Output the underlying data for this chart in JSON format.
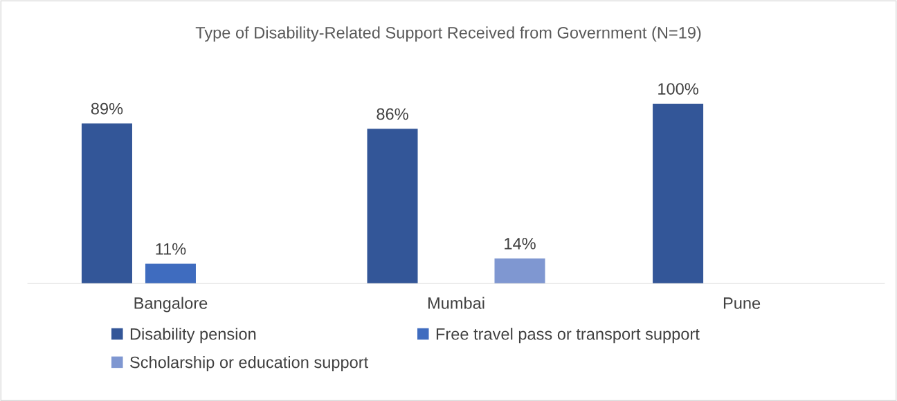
{
  "chart_data": {
    "type": "bar",
    "title": "Type of Disability-Related Support Received from Government (N=19)",
    "categories": [
      "Bangalore",
      "Mumbai",
      "Pune"
    ],
    "series": [
      {
        "name": "Disability pension",
        "color": "#335698",
        "values": [
          89,
          86,
          100
        ],
        "value_labels": [
          "89%",
          "86%",
          "100%"
        ]
      },
      {
        "name": "Free travel pass or transport support",
        "color": "#3f6cbf",
        "values": [
          11,
          null,
          null
        ],
        "value_labels": [
          "11%",
          null,
          null
        ]
      },
      {
        "name": "Scholarship or education support",
        "color": "#7f97d1",
        "values": [
          null,
          14,
          null
        ],
        "value_labels": [
          null,
          "14%",
          null
        ]
      }
    ],
    "legend": "bottom",
    "grid": false
  }
}
